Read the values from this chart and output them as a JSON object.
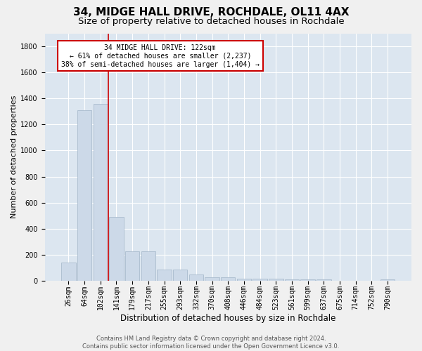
{
  "title": "34, MIDGE HALL DRIVE, ROCHDALE, OL11 4AX",
  "subtitle": "Size of property relative to detached houses in Rochdale",
  "xlabel": "Distribution of detached houses by size in Rochdale",
  "ylabel": "Number of detached properties",
  "categories": [
    "26sqm",
    "64sqm",
    "102sqm",
    "141sqm",
    "179sqm",
    "217sqm",
    "255sqm",
    "293sqm",
    "332sqm",
    "370sqm",
    "408sqm",
    "446sqm",
    "484sqm",
    "523sqm",
    "561sqm",
    "599sqm",
    "637sqm",
    "675sqm",
    "714sqm",
    "752sqm",
    "790sqm"
  ],
  "values": [
    140,
    1310,
    1360,
    490,
    225,
    225,
    85,
    85,
    50,
    25,
    25,
    15,
    15,
    15,
    10,
    10,
    10,
    0,
    0,
    0,
    10
  ],
  "bar_color": "#ccd9e8",
  "bar_edgecolor": "#aabcce",
  "vline_color": "#cc0000",
  "annotation_text": "34 MIDGE HALL DRIVE: 122sqm\n← 61% of detached houses are smaller (2,237)\n38% of semi-detached houses are larger (1,404) →",
  "annotation_box_edgecolor": "#cc0000",
  "annotation_box_facecolor": "#ffffff",
  "ylim": [
    0,
    1900
  ],
  "yticks": [
    0,
    200,
    400,
    600,
    800,
    1000,
    1200,
    1400,
    1600,
    1800
  ],
  "background_color": "#dce6f0",
  "grid_color": "#ffffff",
  "title_fontsize": 11,
  "subtitle_fontsize": 9.5,
  "xlabel_fontsize": 8.5,
  "ylabel_fontsize": 8,
  "tick_fontsize": 7,
  "footer_text": "Contains HM Land Registry data © Crown copyright and database right 2024.\nContains public sector information licensed under the Open Government Licence v3.0.",
  "footer_fontsize": 6
}
